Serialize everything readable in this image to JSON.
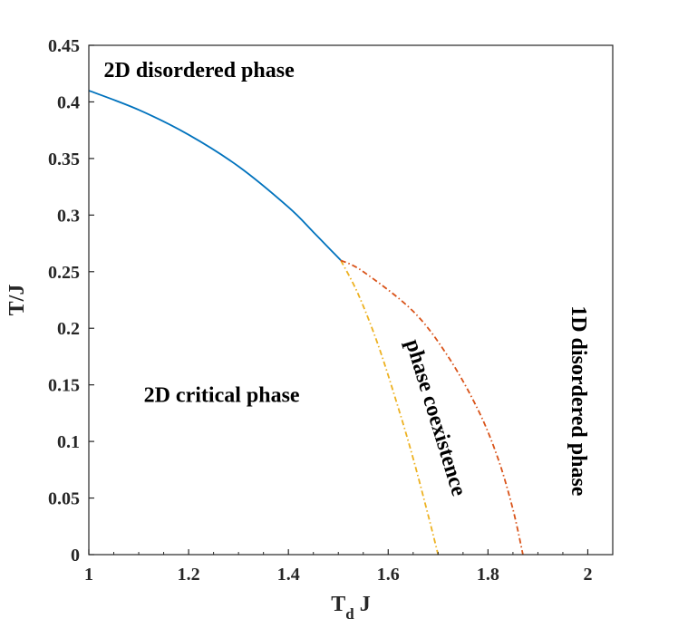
{
  "chart_data": {
    "type": "line",
    "title": "",
    "xlabel": {
      "main": "T",
      "sub": "d",
      "rest": " J"
    },
    "ylabel": "T/J",
    "xlim": [
      1,
      2.05
    ],
    "ylim": [
      0,
      0.45
    ],
    "xticks": [
      1,
      1.2,
      1.4,
      1.6,
      1.8,
      2
    ],
    "xtick_labels": [
      "1",
      "1.2",
      "1.4",
      "1.6",
      "1.8",
      "2"
    ],
    "yticks": [
      0,
      0.05,
      0.1,
      0.15,
      0.2,
      0.25,
      0.3,
      0.35,
      0.4,
      0.45
    ],
    "ytick_labels": [
      "0",
      "0.05",
      "0.1",
      "0.15",
      "0.2",
      "0.25",
      "0.3",
      "0.35",
      "0.4",
      "0.45"
    ],
    "grid": false,
    "series": [
      {
        "name": "2D disordered / 2D critical boundary",
        "style": "solid",
        "color": "#0072BD",
        "x": [
          1.0,
          1.1,
          1.2,
          1.3,
          1.4,
          1.45,
          1.505
        ],
        "y": [
          0.41,
          0.393,
          0.371,
          0.343,
          0.307,
          0.285,
          0.26
        ]
      },
      {
        "name": "2D critical / phase coexistence boundary",
        "style": "dashdot",
        "color": "#EDB120",
        "x": [
          1.505,
          1.54,
          1.58,
          1.62,
          1.65,
          1.68,
          1.7
        ],
        "y": [
          0.26,
          0.23,
          0.185,
          0.13,
          0.085,
          0.035,
          0.0
        ]
      },
      {
        "name": "phase coexistence / 1D disordered boundary",
        "style": "dashdot",
        "color": "#D95319",
        "x": [
          1.505,
          1.55,
          1.65,
          1.72,
          1.78,
          1.82,
          1.85,
          1.87
        ],
        "y": [
          0.26,
          0.25,
          0.215,
          0.175,
          0.128,
          0.085,
          0.04,
          0.0
        ]
      }
    ],
    "annotations": [
      {
        "text": "2D disordered phase",
        "x": 1.03,
        "y": 0.422,
        "rotation": 0
      },
      {
        "text": "2D critical phase",
        "x": 1.11,
        "y": 0.135,
        "rotation": 0
      },
      {
        "text": "phase coexistence",
        "x": 1.635,
        "y": 0.188,
        "rotation": 73
      },
      {
        "text": "1D disordered phase",
        "x": 1.968,
        "y": 0.22,
        "rotation": 90
      }
    ]
  }
}
